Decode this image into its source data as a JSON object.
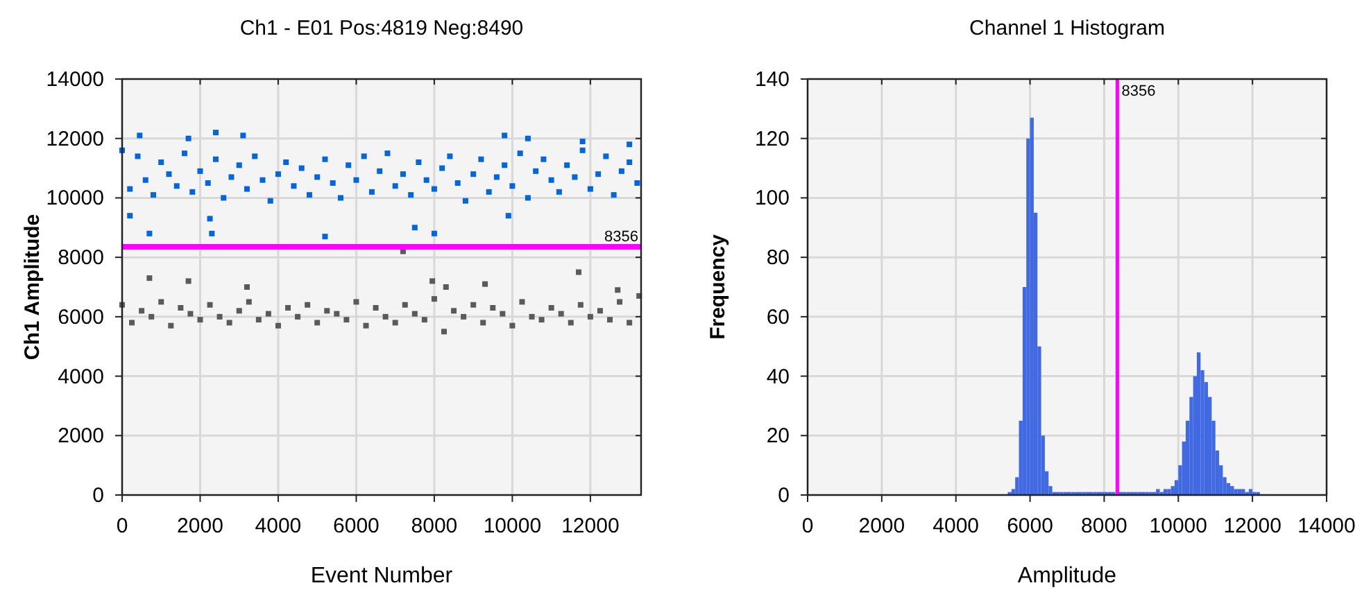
{
  "chart_data": [
    {
      "type": "scatter",
      "title": "Ch1 - E01 Pos:4819 Neg:8490",
      "xlabel": "Event Number",
      "ylabel": "Ch1 Amplitude",
      "xlim": [
        0,
        13300
      ],
      "xticks": [
        0,
        2000,
        4000,
        6000,
        8000,
        10000,
        12000
      ],
      "ylim": [
        0,
        14000
      ],
      "yticks": [
        0,
        2000,
        4000,
        6000,
        8000,
        10000,
        12000,
        14000
      ],
      "grid": true,
      "marker": "square",
      "ref_lines": [
        {
          "axis": "y",
          "value": 8356,
          "label": "8356",
          "color": "#ff00ff"
        }
      ],
      "series": [
        {
          "color": "#0066dd",
          "x": [
            0,
            200,
            400,
            600,
            800,
            1000,
            1200,
            1400,
            1600,
            1800,
            2000,
            2200,
            2400,
            2600,
            2800,
            3000,
            3200,
            3400,
            3600,
            3800,
            4000,
            4200,
            4400,
            4600,
            4800,
            5000,
            5200,
            5400,
            5600,
            5800,
            6000,
            6200,
            6400,
            6600,
            6800,
            7000,
            7200,
            7400,
            7600,
            7800,
            8000,
            8200,
            8400,
            8600,
            8800,
            9000,
            9200,
            9400,
            9600,
            9800,
            10000,
            10200,
            10400,
            10600,
            10800,
            11000,
            11200,
            11400,
            11600,
            11800,
            12000,
            12200,
            12400,
            12600,
            12800,
            13000,
            13200,
            200,
            700,
            2250,
            2300,
            5200,
            7500,
            8000,
            9900,
            2400,
            450,
            3100,
            9800,
            10400,
            1700,
            11800,
            13000
          ],
          "values": [
            11600,
            10300,
            11400,
            10600,
            10100,
            11200,
            10800,
            10400,
            11500,
            10200,
            10900,
            10500,
            11300,
            10000,
            10700,
            11100,
            10300,
            11400,
            10600,
            9900,
            10800,
            11200,
            10400,
            11000,
            10100,
            10700,
            11300,
            10500,
            10000,
            11100,
            10600,
            11400,
            10200,
            10900,
            11500,
            10400,
            10800,
            10100,
            11200,
            10600,
            10300,
            11000,
            11400,
            10500,
            9900,
            10800,
            11300,
            10200,
            10700,
            11100,
            10400,
            11500,
            10000,
            10900,
            11300,
            10600,
            10200,
            11100,
            10700,
            11600,
            10300,
            10800,
            11400,
            10100,
            10900,
            11200,
            10500,
            9400,
            8800,
            9300,
            8800,
            8700,
            9000,
            8800,
            9400,
            12200,
            12100,
            12100,
            12100,
            12000,
            12000,
            11900,
            11800
          ]
        },
        {
          "color": "#5a5a5a",
          "x": [
            0,
            250,
            500,
            750,
            1000,
            1250,
            1500,
            1750,
            2000,
            2250,
            2500,
            2750,
            3000,
            3250,
            3500,
            3750,
            4000,
            4250,
            4500,
            4750,
            5000,
            5250,
            5500,
            5750,
            6000,
            6250,
            6500,
            6750,
            7000,
            7250,
            7500,
            7750,
            8000,
            8250,
            8500,
            8750,
            9000,
            9250,
            9500,
            9750,
            10000,
            10250,
            10500,
            10750,
            11000,
            11250,
            11500,
            11750,
            12000,
            12250,
            12500,
            12750,
            13000,
            13250,
            700,
            1700,
            3200,
            7950,
            9300,
            11700,
            7200,
            8300,
            12700
          ],
          "values": [
            6400,
            5800,
            6200,
            6000,
            6500,
            5700,
            6300,
            6100,
            5900,
            6400,
            6000,
            5800,
            6200,
            6500,
            5900,
            6100,
            5700,
            6300,
            6000,
            6400,
            5800,
            6200,
            6100,
            5900,
            6500,
            5700,
            6300,
            6000,
            5800,
            6400,
            6100,
            5900,
            6600,
            5500,
            6200,
            6000,
            6400,
            5800,
            6300,
            6100,
            5700,
            6500,
            6000,
            5900,
            6300,
            6100,
            5800,
            6400,
            6000,
            6200,
            5900,
            6500,
            5800,
            6700,
            7300,
            7200,
            7000,
            7200,
            7100,
            7500,
            8200,
            7000,
            6900
          ]
        }
      ]
    },
    {
      "type": "histogram",
      "title": "Channel 1 Histogram",
      "xlabel": "Amplitude",
      "ylabel": "Frequency",
      "xlim": [
        0,
        14000
      ],
      "xticks": [
        0,
        2000,
        4000,
        6000,
        8000,
        10000,
        12000,
        14000
      ],
      "ylim": [
        0,
        140
      ],
      "yticks": [
        0,
        20,
        40,
        60,
        80,
        100,
        120,
        140
      ],
      "grid": true,
      "color": "#4169e1",
      "ref_lines": [
        {
          "axis": "x",
          "value": 8356,
          "label": "8356",
          "color": "#ff00ff"
        }
      ],
      "bins": [
        5400,
        5500,
        5600,
        5700,
        5800,
        5900,
        6000,
        6100,
        6200,
        6300,
        6400,
        6500,
        6600,
        6700,
        6800,
        6900,
        7000,
        7100,
        7200,
        7300,
        7400,
        7500,
        7600,
        7700,
        7800,
        7900,
        8000,
        8100,
        8200,
        8300,
        8400,
        8500,
        8600,
        8700,
        8800,
        8900,
        9000,
        9100,
        9200,
        9300,
        9400,
        9500,
        9600,
        9700,
        9800,
        9900,
        10000,
        10100,
        10200,
        10300,
        10400,
        10500,
        10600,
        10700,
        10800,
        10900,
        11000,
        11100,
        11200,
        11300,
        11400,
        11500,
        11600,
        11700,
        11800,
        11900,
        12000,
        12100,
        12200
      ],
      "values": [
        1,
        2,
        6,
        25,
        70,
        120,
        127,
        95,
        50,
        20,
        8,
        3,
        1,
        1,
        1,
        1,
        1,
        1,
        1,
        1,
        1,
        1,
        1,
        1,
        1,
        1,
        1,
        1,
        1,
        null,
        1,
        1,
        1,
        1,
        1,
        1,
        1,
        1,
        1,
        1,
        2,
        1,
        2,
        2,
        3,
        5,
        10,
        18,
        25,
        33,
        40,
        48,
        42,
        38,
        33,
        25,
        15,
        10,
        6,
        4,
        3,
        2,
        2,
        2,
        1,
        2,
        1,
        1
      ]
    }
  ]
}
